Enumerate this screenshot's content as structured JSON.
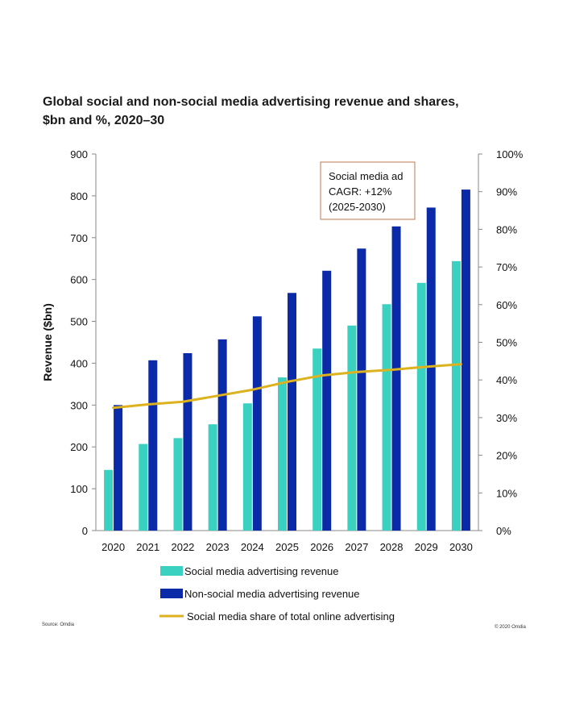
{
  "title_line1": "Global social and non-social media advertising revenue and shares,",
  "title_line2": "$bn and %, 2020–30",
  "source": "Source: Omdia",
  "copyright": "© 2020 Omdia",
  "colors": {
    "social": "#3ad1c1",
    "non_social": "#0a2aa8",
    "share": "#ddb21f",
    "callout_border": "#c07a50"
  },
  "chart_data": {
    "type": "bar",
    "categories": [
      "2020",
      "2021",
      "2022",
      "2023",
      "2024",
      "2025",
      "2026",
      "2027",
      "2028",
      "2029",
      "2030"
    ],
    "series": [
      {
        "name": "Social media advertising revenue",
        "type": "bar",
        "axis": "left",
        "values": [
          145,
          207,
          221,
          254,
          304,
          366,
          435,
          490,
          541,
          592,
          644
        ]
      },
      {
        "name": "Non-social media advertising revenue",
        "type": "bar",
        "axis": "left",
        "values": [
          300,
          407,
          424,
          457,
          512,
          568,
          621,
          674,
          727,
          772,
          815
        ]
      },
      {
        "name": "Social media share of total online advertising",
        "type": "line",
        "axis": "right",
        "values": [
          32.6,
          33.5,
          34.2,
          35.8,
          37.4,
          39.5,
          41.2,
          42.1,
          42.7,
          43.5,
          44.2
        ]
      }
    ],
    "ylabel": "Revenue ($bn)",
    "ylim": [
      0,
      900
    ],
    "yticks": [
      "0",
      "100",
      "200",
      "300",
      "400",
      "500",
      "600",
      "700",
      "800",
      "900"
    ],
    "y2lim": [
      0,
      100
    ],
    "y2ticks": [
      "0%",
      "10%",
      "20%",
      "30%",
      "40%",
      "50%",
      "60%",
      "70%",
      "80%",
      "90%",
      "100%"
    ],
    "annotation": [
      "Social media ad",
      "CAGR: +12%",
      "(2025-2030)"
    ],
    "legend_position": "bottom",
    "grid": false
  }
}
